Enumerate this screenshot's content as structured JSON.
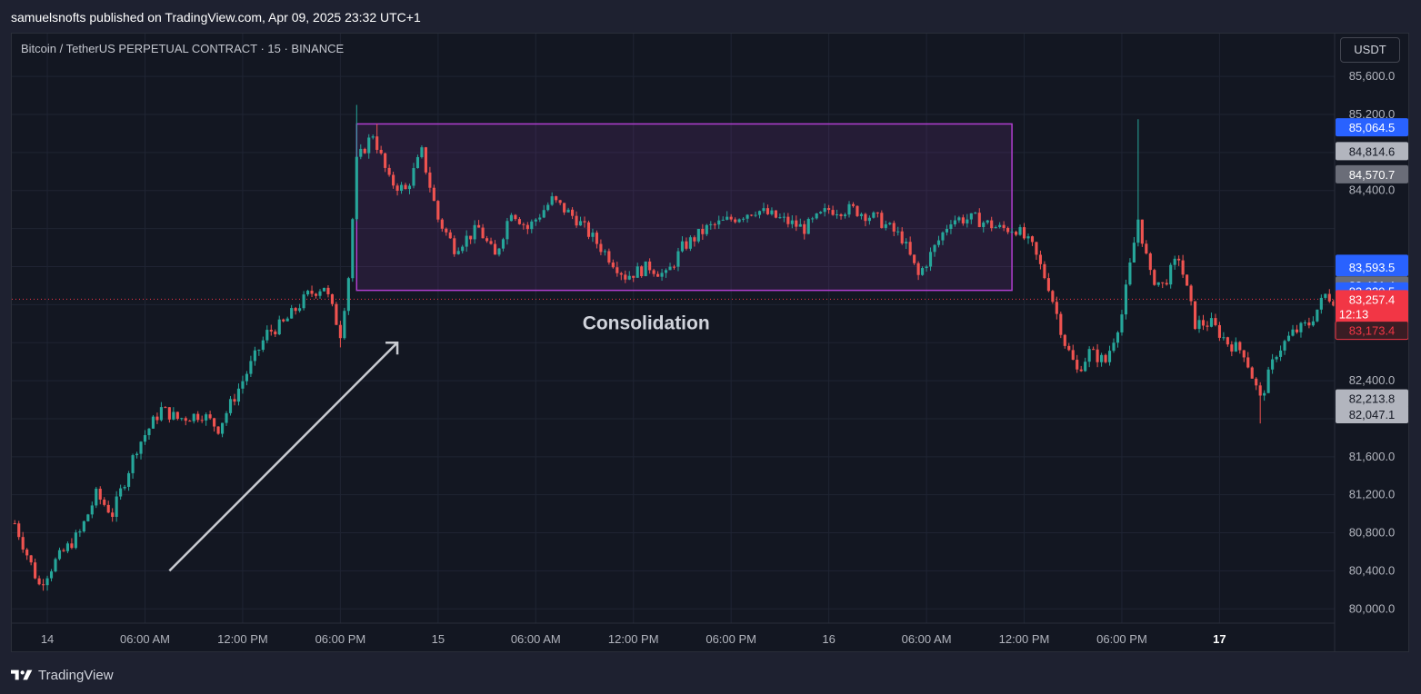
{
  "header": {
    "published_text": "samuelsnofts published on TradingView.com, Apr 09, 2025 23:32 UTC+1"
  },
  "chart_header": {
    "symbol_title": "Bitcoin / TetherUS PERPETUAL CONTRACT · 15 · BINANCE",
    "currency_button": "USDT"
  },
  "footer": {
    "brand": "TradingView",
    "logo_icon": "tradingview-logo-icon"
  },
  "colors": {
    "background": "#131722",
    "up": "#26a69a",
    "down": "#ef5350",
    "grid": "#1f2433",
    "consolidation_box": "#b03fd0",
    "arrow": "#c9cbd1",
    "current_price_line": "#f23645"
  },
  "chart_data": {
    "type": "candlestick",
    "title": "Bitcoin / TetherUS PERPETUAL CONTRACT · 15 · BINANCE",
    "timeframe": "15",
    "y_axis": {
      "ticks": [
        80000,
        80400,
        80800,
        81200,
        81600,
        82000,
        82400,
        82800,
        83200,
        83600,
        84000,
        84400,
        84800,
        85200,
        85600
      ],
      "tick_labels": [
        "80,000.0",
        "80,400.0",
        "80,800.0",
        "81,200.0",
        "81,600.0",
        "",
        "82,400.0",
        "",
        "",
        "",
        "",
        "84,400.0",
        "",
        "85,200.0",
        "85,600.0"
      ],
      "range": [
        79850,
        86050
      ]
    },
    "x_axis": {
      "tick_labels": [
        "14",
        "06:00 AM",
        "12:00 PM",
        "06:00 PM",
        "15",
        "06:00 AM",
        "12:00 PM",
        "06:00 PM",
        "16",
        "06:00 AM",
        "12:00 PM",
        "06:00 PM",
        "17"
      ],
      "bold_labels": [
        "17"
      ],
      "tick_positions_bar_index": [
        8,
        32,
        56,
        80,
        104,
        128,
        152,
        176,
        200,
        224,
        248,
        272,
        296
      ]
    },
    "price_labels": [
      {
        "value": "85,064.5",
        "price": 85064.5,
        "kind": "blue"
      },
      {
        "value": "84,814.6",
        "price": 84814.6,
        "kind": "light"
      },
      {
        "value": "84,570.7",
        "price": 84570.7,
        "kind": "gray"
      },
      {
        "value": "83,629.8",
        "price": 83629.8,
        "kind": "blue"
      },
      {
        "value": "83,593.5",
        "price": 83593.5,
        "kind": "blue"
      },
      {
        "value": "83,401.4",
        "price": 83401.4,
        "kind": "gray"
      },
      {
        "value": "83,339.5",
        "price": 83339.5,
        "kind": "blue"
      },
      {
        "value": "83,257.4",
        "price": 83257.4,
        "kind": "red",
        "sub": "12:13"
      },
      {
        "value": "83,173.4",
        "price": 82930,
        "kind": "dark-red"
      },
      {
        "value": "82,213.8",
        "price": 82213.8,
        "kind": "light"
      },
      {
        "value": "82,047.1",
        "price": 82047.1,
        "kind": "light"
      }
    ],
    "current_price": 83257.4,
    "countdown": "12:13",
    "annotations": {
      "consolidation_label": "Consolidation",
      "box": {
        "bar_start": 84,
        "bar_end": 245,
        "price_top": 85100,
        "price_bottom": 83350
      },
      "arrow": {
        "from_bar": 38,
        "from_price": 80400,
        "to_bar": 94,
        "to_price": 82800
      }
    },
    "path": [
      [
        0,
        80900
      ],
      [
        6,
        80250
      ],
      [
        10,
        80500
      ],
      [
        16,
        80800
      ],
      [
        20,
        81200
      ],
      [
        24,
        81000
      ],
      [
        30,
        81700
      ],
      [
        36,
        82100
      ],
      [
        40,
        82000
      ],
      [
        46,
        82050
      ],
      [
        50,
        81900
      ],
      [
        56,
        82400
      ],
      [
        62,
        82900
      ],
      [
        66,
        83000
      ],
      [
        72,
        83300
      ],
      [
        76,
        83400
      ],
      [
        80,
        82900
      ],
      [
        82,
        83500
      ],
      [
        84,
        84700
      ],
      [
        88,
        85000
      ],
      [
        92,
        84500
      ],
      [
        96,
        84400
      ],
      [
        100,
        84800
      ],
      [
        104,
        84100
      ],
      [
        108,
        83800
      ],
      [
        114,
        84000
      ],
      [
        118,
        83700
      ],
      [
        122,
        84200
      ],
      [
        126,
        84000
      ],
      [
        132,
        84300
      ],
      [
        138,
        84100
      ],
      [
        144,
        83800
      ],
      [
        150,
        83500
      ],
      [
        156,
        83600
      ],
      [
        160,
        83500
      ],
      [
        164,
        83800
      ],
      [
        170,
        84000
      ],
      [
        176,
        84100
      ],
      [
        182,
        84200
      ],
      [
        188,
        84100
      ],
      [
        194,
        84000
      ],
      [
        200,
        84200
      ],
      [
        206,
        84200
      ],
      [
        212,
        84100
      ],
      [
        218,
        83900
      ],
      [
        222,
        83500
      ],
      [
        226,
        83800
      ],
      [
        230,
        84100
      ],
      [
        236,
        84100
      ],
      [
        242,
        84000
      ],
      [
        246,
        84000
      ],
      [
        250,
        83800
      ],
      [
        254,
        83400
      ],
      [
        258,
        82800
      ],
      [
        261,
        82500
      ],
      [
        264,
        82700
      ],
      [
        268,
        82600
      ],
      [
        272,
        83100
      ],
      [
        276,
        84100
      ],
      [
        279,
        83500
      ],
      [
        282,
        83400
      ],
      [
        286,
        83700
      ],
      [
        290,
        83000
      ],
      [
        294,
        83000
      ],
      [
        298,
        82800
      ],
      [
        302,
        82700
      ],
      [
        306,
        82200
      ],
      [
        310,
        82700
      ],
      [
        314,
        82900
      ],
      [
        318,
        83000
      ],
      [
        322,
        83300
      ],
      [
        324,
        83257
      ]
    ],
    "num_candles": 325
  }
}
